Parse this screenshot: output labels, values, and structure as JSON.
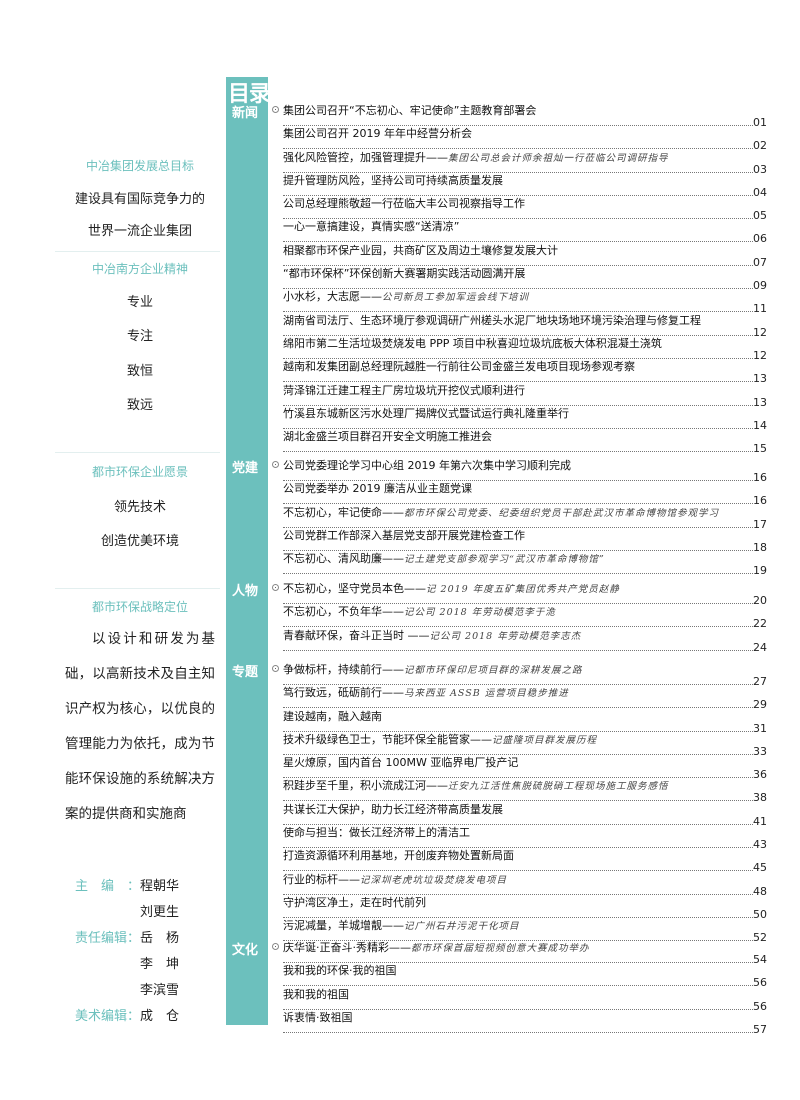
{
  "left_column": {
    "goal_heading": "中冶集团发展总目标",
    "goal_lines": [
      "建设具有国际竞争力的",
      "世界一流企业集团"
    ],
    "spirit_heading": "中冶南方企业精神",
    "spirit_items": [
      "专业",
      "专注",
      "致恒",
      "致远"
    ],
    "vision_heading": "都市环保企业愿景",
    "vision_lines": [
      "领先技术",
      "创造优美环境"
    ],
    "strategy_heading": "都市环保战略定位",
    "strategy_text": "以设计和研发为基础，以高新技术及自主知识产权为核心，以优良的管理能力为依托，成为节能环保设施的系统解决方案的提供商和实施商",
    "editors": [
      {
        "role": "主编：",
        "names": [
          "程朝华",
          "刘更生"
        ]
      },
      {
        "role": "责任编辑：",
        "names": [
          "岳　杨",
          "李　坤",
          "李滨雪"
        ]
      },
      {
        "role": "美术编辑：",
        "names": [
          "成　仓"
        ]
      }
    ]
  },
  "toc": {
    "title": "目录",
    "accent_color": "#6cc0bd",
    "sections": [
      {
        "label": "新闻",
        "entries": [
          {
            "title": "集团公司召开“不忘初心、牢记使命”主题教育部署会",
            "sub": "",
            "page": "01"
          },
          {
            "title": "集团公司召开 2019 年年中经营分析会",
            "sub": "",
            "page": "02"
          },
          {
            "title": "强化风险管控，加强管理提升——",
            "sub": "集团公司总会计师余祖灿一行莅临公司调研指导",
            "page": "03"
          },
          {
            "title": "提升管理防风险，坚持公司可持续高质量发展",
            "sub": "",
            "page": "04"
          },
          {
            "title": "公司总经理熊敬超一行莅临大丰公司视察指导工作",
            "sub": "",
            "page": "05"
          },
          {
            "title": "一心一意搞建设，真情实感“送清凉”",
            "sub": "",
            "page": "06"
          },
          {
            "title": "相聚都市环保产业园，共商矿区及周边土壤修复发展大计",
            "sub": "",
            "page": "07"
          },
          {
            "title": "“都市环保杯”环保创新大赛署期实践活动圆满开展",
            "sub": "",
            "page": "09"
          },
          {
            "title": "小水杉，大志愿——",
            "sub": "公司新员工参加军运会线下培训",
            "page": "11"
          },
          {
            "title": "湖南省司法厅、生态环境厅参观调研广州槎头水泥厂地块场地环境污染治理与修复工程",
            "sub": "",
            "page": "12"
          },
          {
            "title": "绵阳市第二生活垃圾焚烧发电 PPP 项目中秋喜迎垃圾坑底板大体积混凝土浇筑",
            "sub": "",
            "page": "12"
          },
          {
            "title": "越南和发集团副总经理阮越胜一行前往公司金盛兰发电项目现场参观考察",
            "sub": "",
            "page": "13"
          },
          {
            "title": "菏泽锦江迁建工程主厂房垃圾坑开挖仪式顺利进行",
            "sub": "",
            "page": "13"
          },
          {
            "title": "竹溪县东城新区污水处理厂揭牌仪式暨试运行典礼隆重举行",
            "sub": "",
            "page": "14"
          },
          {
            "title": "湖北金盛兰项目群召开安全文明施工推进会",
            "sub": "",
            "page": "15"
          }
        ]
      },
      {
        "label": "党建",
        "entries": [
          {
            "title": "公司党委理论学习中心组 2019 年第六次集中学习顺利完成",
            "sub": "",
            "page": "16"
          },
          {
            "title": "公司党委举办 2019 廉洁从业主题党课",
            "sub": "",
            "page": "16"
          },
          {
            "title": "不忘初心，牢记使命——",
            "sub": "都市环保公司党委、纪委组织党员干部赴武汉市革命博物馆参观学习",
            "page": "17"
          },
          {
            "title": "公司党群工作部深入基层党支部开展党建检查工作",
            "sub": "",
            "page": "18"
          },
          {
            "title": "不忘初心、清风助廉——",
            "sub": "记土建党支部参观学习“武汉市革命博物馆”",
            "page": "19"
          }
        ]
      },
      {
        "label": "人物",
        "entries": [
          {
            "title": "不忘初心，坚守党员本色——",
            "sub": "记 2019 年度五矿集团优秀共产党员赵静",
            "page": "20"
          },
          {
            "title": "不忘初心，不负年华——",
            "sub": "记公司 2018 年劳动模范李于洈",
            "page": "22"
          },
          {
            "title": "青春献环保，奋斗正当时 ——",
            "sub": "记公司 2018 年劳动模范李志杰",
            "page": "24"
          }
        ]
      },
      {
        "label": "专题",
        "entries": [
          {
            "title": "争做标杆，持续前行——",
            "sub": "记都市环保印尼项目群的深耕发展之路",
            "page": "27"
          },
          {
            "title": "笃行致远，砥砺前行——",
            "sub": "马来西亚 ASSB 运营项目稳步推进",
            "page": "29"
          },
          {
            "title": "建设越南，融入越南",
            "sub": "",
            "page": "31"
          },
          {
            "title": "技术升级绿色卫士，节能环保全能管家——",
            "sub": "记盛隆项目群发展历程",
            "page": "33"
          },
          {
            "title": "星火燎原，国内首台 100MW 亚临界电厂投产记",
            "sub": "",
            "page": "36"
          },
          {
            "title": "积跬步至千里，积小流成江河——",
            "sub": "迁安九江活性焦脱硫脱硝工程现场施工服务感悟",
            "page": "38"
          },
          {
            "title": "共谋长江大保护，助力长江经济带高质量发展",
            "sub": "",
            "page": "41"
          },
          {
            "title": "使命与担当：做长江经济带上的清洁工",
            "sub": "",
            "page": "43"
          },
          {
            "title": "打造资源循环利用基地，开创废弃物处置新局面",
            "sub": "",
            "page": "45"
          },
          {
            "title": "行业的标杆——",
            "sub": "记深圳老虎坑垃圾焚烧发电项目",
            "page": "48"
          },
          {
            "title": "守护湾区净土，走在时代前列",
            "sub": "",
            "page": "50"
          },
          {
            "title": "污泥减量，羊城增靓——",
            "sub": "记广州石井污泥干化项目",
            "page": "52"
          }
        ]
      },
      {
        "label": "文化",
        "entries": [
          {
            "title": "庆华诞·正奋斗·秀精彩——",
            "sub": "都市环保首届短视频创意大赛成功举办",
            "page": "54"
          },
          {
            "title": "我和我的环保·我的祖国",
            "sub": "",
            "page": "56"
          },
          {
            "title": "我和我的祖国",
            "sub": "",
            "page": "56"
          },
          {
            "title": "诉衷情·致祖国",
            "sub": "",
            "page": "57"
          }
        ]
      }
    ]
  }
}
